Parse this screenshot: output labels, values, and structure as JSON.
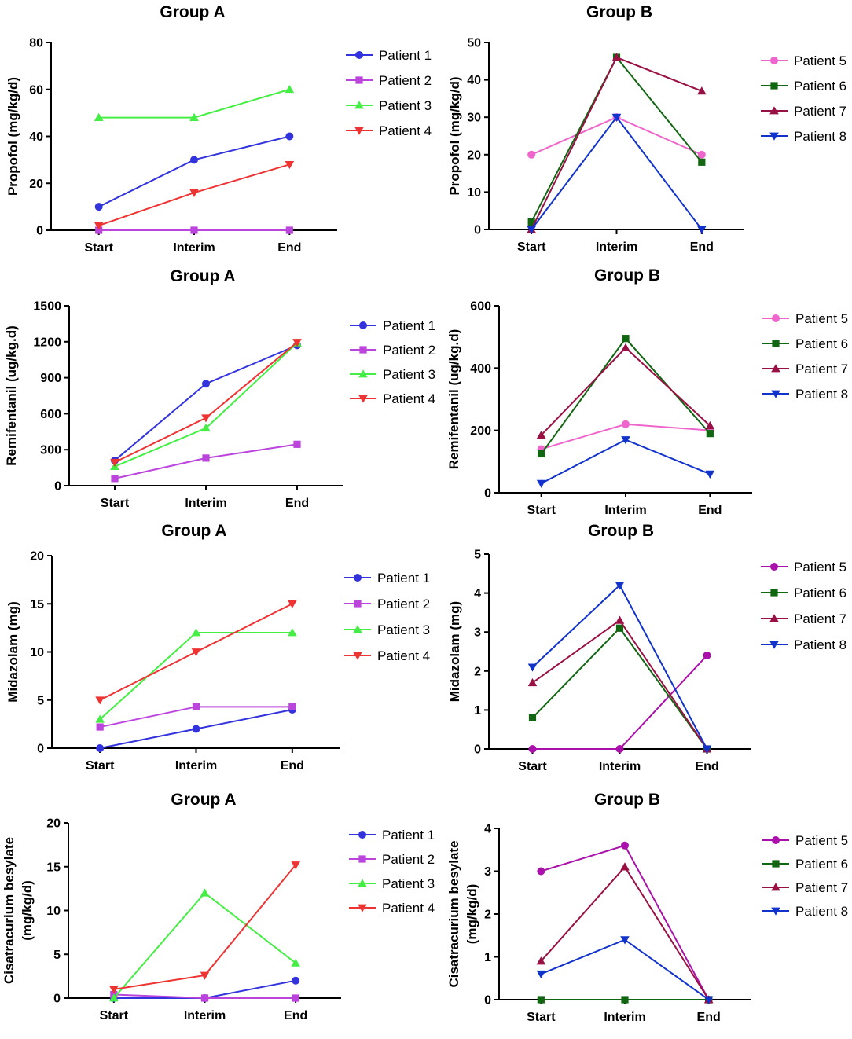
{
  "colors": {
    "Patient 1": "#3333dd",
    "Patient 2": "#bb44dd",
    "Patient 3": "#44ee44",
    "Patient 4": "#ee3333",
    "Patient 5": "#ee66cc",
    "Patient 6": "#116611",
    "Patient 7": "#991144",
    "Patient 8": "#1133cc",
    "Patient 5 purple": "#aa11aa"
  },
  "chart_data": [
    {
      "type": "line",
      "title": "Group A",
      "ylabel": "Propofol (mg/kg/d)",
      "xlabel": "",
      "categories": [
        "Start",
        "Interim",
        "End"
      ],
      "ylim": [
        0,
        80
      ],
      "yticks": [
        "0",
        "20",
        "40",
        "60",
        "80"
      ],
      "series": [
        {
          "name": "Patient 1",
          "marker": "circle",
          "values": [
            10,
            30,
            40
          ]
        },
        {
          "name": "Patient 2",
          "marker": "square",
          "values": [
            0,
            0,
            0
          ]
        },
        {
          "name": "Patient 3",
          "marker": "triangle-up",
          "values": [
            48,
            48,
            60
          ]
        },
        {
          "name": "Patient 4",
          "marker": "triangle-down",
          "values": [
            2,
            16,
            28
          ]
        }
      ]
    },
    {
      "type": "line",
      "title": "Group B",
      "ylabel": "Propofol (mg/kg/d)",
      "xlabel": "",
      "categories": [
        "Start",
        "Interim",
        "End"
      ],
      "ylim": [
        0,
        50
      ],
      "yticks": [
        "0",
        "10",
        "20",
        "30",
        "40",
        "50"
      ],
      "series": [
        {
          "name": "Patient 5",
          "marker": "circle",
          "values": [
            20,
            30,
            20
          ]
        },
        {
          "name": "Patient 6",
          "marker": "square",
          "values": [
            2,
            46,
            18
          ]
        },
        {
          "name": "Patient 7",
          "marker": "triangle-up",
          "values": [
            0,
            46,
            37
          ]
        },
        {
          "name": "Patient 8",
          "marker": "triangle-down",
          "values": [
            0,
            30,
            0
          ]
        }
      ]
    },
    {
      "type": "line",
      "title": "Group A",
      "ylabel": "Remifentanil (ug/kg.d)",
      "xlabel": "",
      "categories": [
        "Start",
        "Interim",
        "End"
      ],
      "ylim": [
        0,
        1500
      ],
      "yticks": [
        "0",
        "300",
        "600",
        "900",
        "1200",
        "1500"
      ],
      "series": [
        {
          "name": "Patient 1",
          "marker": "circle",
          "values": [
            210,
            850,
            1170
          ]
        },
        {
          "name": "Patient 2",
          "marker": "square",
          "values": [
            60,
            230,
            345
          ]
        },
        {
          "name": "Patient 3",
          "marker": "triangle-up",
          "values": [
            160,
            480,
            1190
          ]
        },
        {
          "name": "Patient 4",
          "marker": "triangle-down",
          "values": [
            195,
            565,
            1195
          ]
        }
      ]
    },
    {
      "type": "line",
      "title": "Group B",
      "ylabel": "Remifentanil (ug/kg.d)",
      "xlabel": "",
      "categories": [
        "Start",
        "Interim",
        "End"
      ],
      "ylim": [
        0,
        600
      ],
      "yticks": [
        "0",
        "200",
        "400",
        "600"
      ],
      "series": [
        {
          "name": "Patient 5",
          "marker": "circle",
          "values": [
            140,
            220,
            200
          ]
        },
        {
          "name": "Patient 6",
          "marker": "square",
          "values": [
            125,
            495,
            190
          ]
        },
        {
          "name": "Patient 7",
          "marker": "triangle-up",
          "values": [
            185,
            465,
            215
          ]
        },
        {
          "name": "Patient 8",
          "marker": "triangle-down",
          "values": [
            30,
            170,
            60
          ]
        }
      ]
    },
    {
      "type": "line",
      "title": "Group A",
      "ylabel": "Midazolam (mg)",
      "xlabel": "",
      "categories": [
        "Start",
        "Interim",
        "End"
      ],
      "ylim": [
        0,
        20
      ],
      "yticks": [
        "0",
        "5",
        "10",
        "15",
        "20"
      ],
      "series": [
        {
          "name": "Patient 1",
          "marker": "circle",
          "values": [
            0,
            2,
            4
          ]
        },
        {
          "name": "Patient 2",
          "marker": "square",
          "values": [
            2.2,
            4.3,
            4.3
          ]
        },
        {
          "name": "Patient 3",
          "marker": "triangle-up",
          "values": [
            3,
            12,
            12
          ]
        },
        {
          "name": "Patient 4",
          "marker": "triangle-down",
          "values": [
            5,
            10,
            15
          ]
        }
      ]
    },
    {
      "type": "line",
      "title": "Group B",
      "ylabel": "Midazolam (mg)",
      "xlabel": "",
      "categories": [
        "Start",
        "Interim",
        "End"
      ],
      "ylim": [
        0,
        5
      ],
      "yticks": [
        "0",
        "1",
        "2",
        "3",
        "4",
        "5"
      ],
      "series": [
        {
          "name": "Patient 5",
          "marker": "circle",
          "colorKey": "Patient 5 purple",
          "values": [
            0,
            0,
            2.4
          ]
        },
        {
          "name": "Patient 6",
          "marker": "square",
          "values": [
            0.8,
            3.1,
            0
          ]
        },
        {
          "name": "Patient 7",
          "marker": "triangle-up",
          "values": [
            1.7,
            3.3,
            0
          ]
        },
        {
          "name": "Patient 8",
          "marker": "triangle-down",
          "values": [
            2.1,
            4.2,
            0
          ]
        }
      ]
    },
    {
      "type": "line",
      "title": "Group A",
      "ylabel": "Cisatracurium besylate (mg/kg/d)",
      "xlabel": "",
      "ylabelLines": [
        "Cisatracurium besylate",
        "(mg/kg/d)"
      ],
      "categories": [
        "Start",
        "Interim",
        "End"
      ],
      "ylim": [
        0,
        20
      ],
      "yticks": [
        "0",
        "5",
        "10",
        "15",
        "20"
      ],
      "series": [
        {
          "name": "Patient 1",
          "marker": "circle",
          "values": [
            0,
            0,
            2
          ]
        },
        {
          "name": "Patient 2",
          "marker": "square",
          "values": [
            0.4,
            0,
            0
          ]
        },
        {
          "name": "Patient 3",
          "marker": "triangle-up",
          "values": [
            0,
            12,
            4
          ]
        },
        {
          "name": "Patient 4",
          "marker": "triangle-down",
          "values": [
            1,
            2.6,
            15.2
          ]
        }
      ]
    },
    {
      "type": "line",
      "title": "Group B",
      "ylabel": "Cisatracurium besylate (mg/kg/d)",
      "xlabel": "",
      "ylabelLines": [
        "Cisatracurium besylate",
        "(mg/kg/d)"
      ],
      "categories": [
        "Start",
        "Interim",
        "End"
      ],
      "ylim": [
        0,
        4
      ],
      "yticks": [
        "0",
        "1",
        "2",
        "3",
        "4"
      ],
      "series": [
        {
          "name": "Patient 5",
          "marker": "circle",
          "colorKey": "Patient 5 purple",
          "values": [
            3,
            3.6,
            0
          ]
        },
        {
          "name": "Patient 6",
          "marker": "square",
          "values": [
            0,
            0,
            0
          ]
        },
        {
          "name": "Patient 7",
          "marker": "triangle-up",
          "values": [
            0.9,
            3.1,
            0
          ]
        },
        {
          "name": "Patient 8",
          "marker": "triangle-down",
          "values": [
            0.6,
            1.4,
            0
          ]
        }
      ]
    }
  ]
}
